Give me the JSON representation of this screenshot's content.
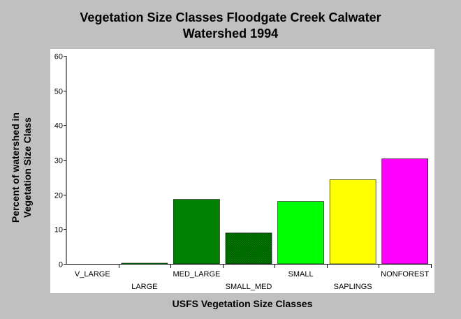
{
  "chart_data": {
    "type": "bar",
    "title_lines": [
      "Vegetation Size Classes Floodgate Creek Calwater",
      "Watershed 1994"
    ],
    "ylabel_lines": [
      "Percent of watershed in",
      "Vegetation Size Class"
    ],
    "xlabel": "USFS Vegetation Size Classes",
    "categories": [
      "V_LARGE",
      "LARGE",
      "MED_LARGE",
      "SMALL_MED",
      "SMALL",
      "SAPLINGS",
      "NONFOREST"
    ],
    "values": [
      0,
      0.2,
      18.6,
      8.9,
      18.0,
      24.3,
      30.3
    ],
    "colors": [
      "#008000",
      "#008000",
      "#008000",
      "#008000",
      "#00ff00",
      "#ffff00",
      "#ff00ff"
    ],
    "patterns": [
      "solid",
      "solid",
      "solid",
      "hatched",
      "solid",
      "solid",
      "solid"
    ],
    "ylim": [
      0,
      60
    ],
    "yticks": [
      0,
      10,
      20,
      30,
      40,
      50,
      60
    ],
    "grid": false,
    "legend": "none"
  }
}
